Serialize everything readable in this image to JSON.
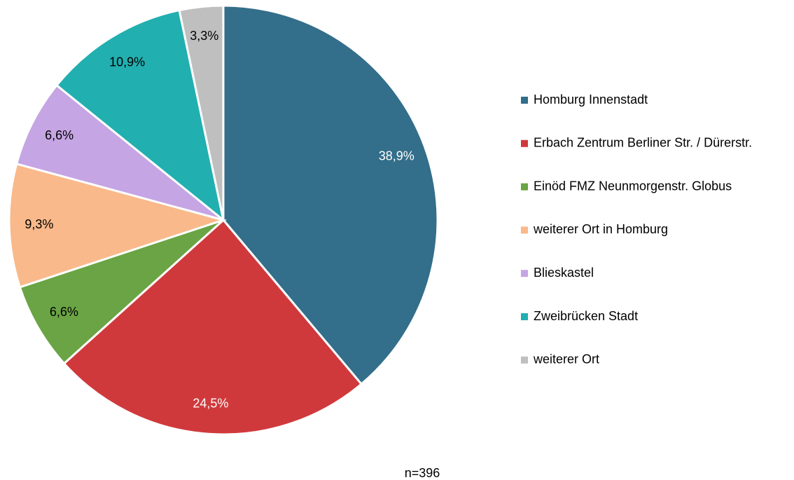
{
  "chart_data": {
    "type": "pie",
    "categories": [
      "Homburg Innenstadt",
      "Erbach Zentrum Berliner Str. / Dürerstr.",
      "Einöd FMZ Neunmorgenstr. Globus",
      "weiterer Ort in Homburg",
      "Blieskastel",
      "Zweibrücken Stadt",
      "weiterer Ort"
    ],
    "values": [
      38.9,
      24.5,
      6.6,
      9.3,
      6.6,
      10.9,
      3.3
    ],
    "value_labels": [
      "38,9%",
      "24,5%",
      "6,6%",
      "9,3%",
      "6,6%",
      "10,9%",
      "3,3%"
    ],
    "colors": [
      "#336e8a",
      "#d0393c",
      "#6aa444",
      "#f9b98a",
      "#c5a5e3",
      "#22afb0",
      "#bfbfbf"
    ],
    "annotation": "n=396",
    "legend": "right"
  }
}
